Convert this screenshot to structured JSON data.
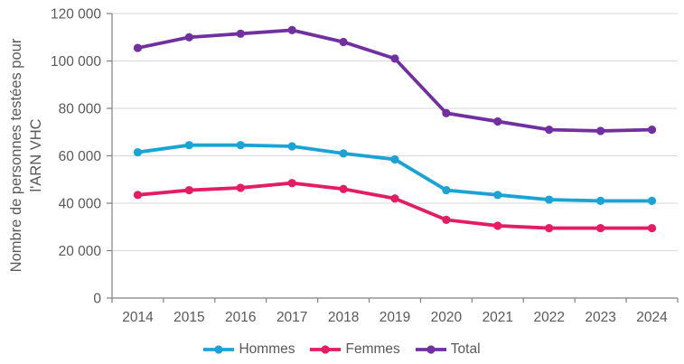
{
  "chart_data": {
    "type": "line",
    "title": "",
    "ylabel_lines": [
      "Nombre de personnes testées pour",
      "l'ARN VHC"
    ],
    "xlabel": "",
    "categories": [
      "2014",
      "2015",
      "2016",
      "2017",
      "2018",
      "2019",
      "2020",
      "2021",
      "2022",
      "2023",
      "2024"
    ],
    "series": [
      {
        "name": "Hommes",
        "color": "#1BA3D4",
        "values": [
          61500,
          64500,
          64500,
          64000,
          61000,
          58500,
          45500,
          43500,
          41500,
          41000,
          41000
        ]
      },
      {
        "name": "Femmes",
        "color": "#E31C64",
        "values": [
          43500,
          45500,
          46500,
          48500,
          46000,
          42000,
          33000,
          30500,
          29500,
          29500,
          29500
        ]
      },
      {
        "name": "Total",
        "color": "#7030A0",
        "values": [
          105500,
          110000,
          111500,
          113000,
          108000,
          101000,
          78000,
          74500,
          71000,
          70500,
          71000
        ]
      }
    ],
    "y_axis": {
      "min": 0,
      "max": 120000,
      "step": 20000,
      "tick_labels": [
        "0",
        "20 000",
        "40 000",
        "60 000",
        "80 000",
        "100 000",
        "120 000"
      ]
    },
    "legend": {
      "position": "bottom"
    },
    "grid": true
  },
  "styles": {
    "background": "#FFFFFF",
    "text_color": "#595959",
    "gridline_color": "#D9D9D9",
    "axis_color": "#808080"
  }
}
